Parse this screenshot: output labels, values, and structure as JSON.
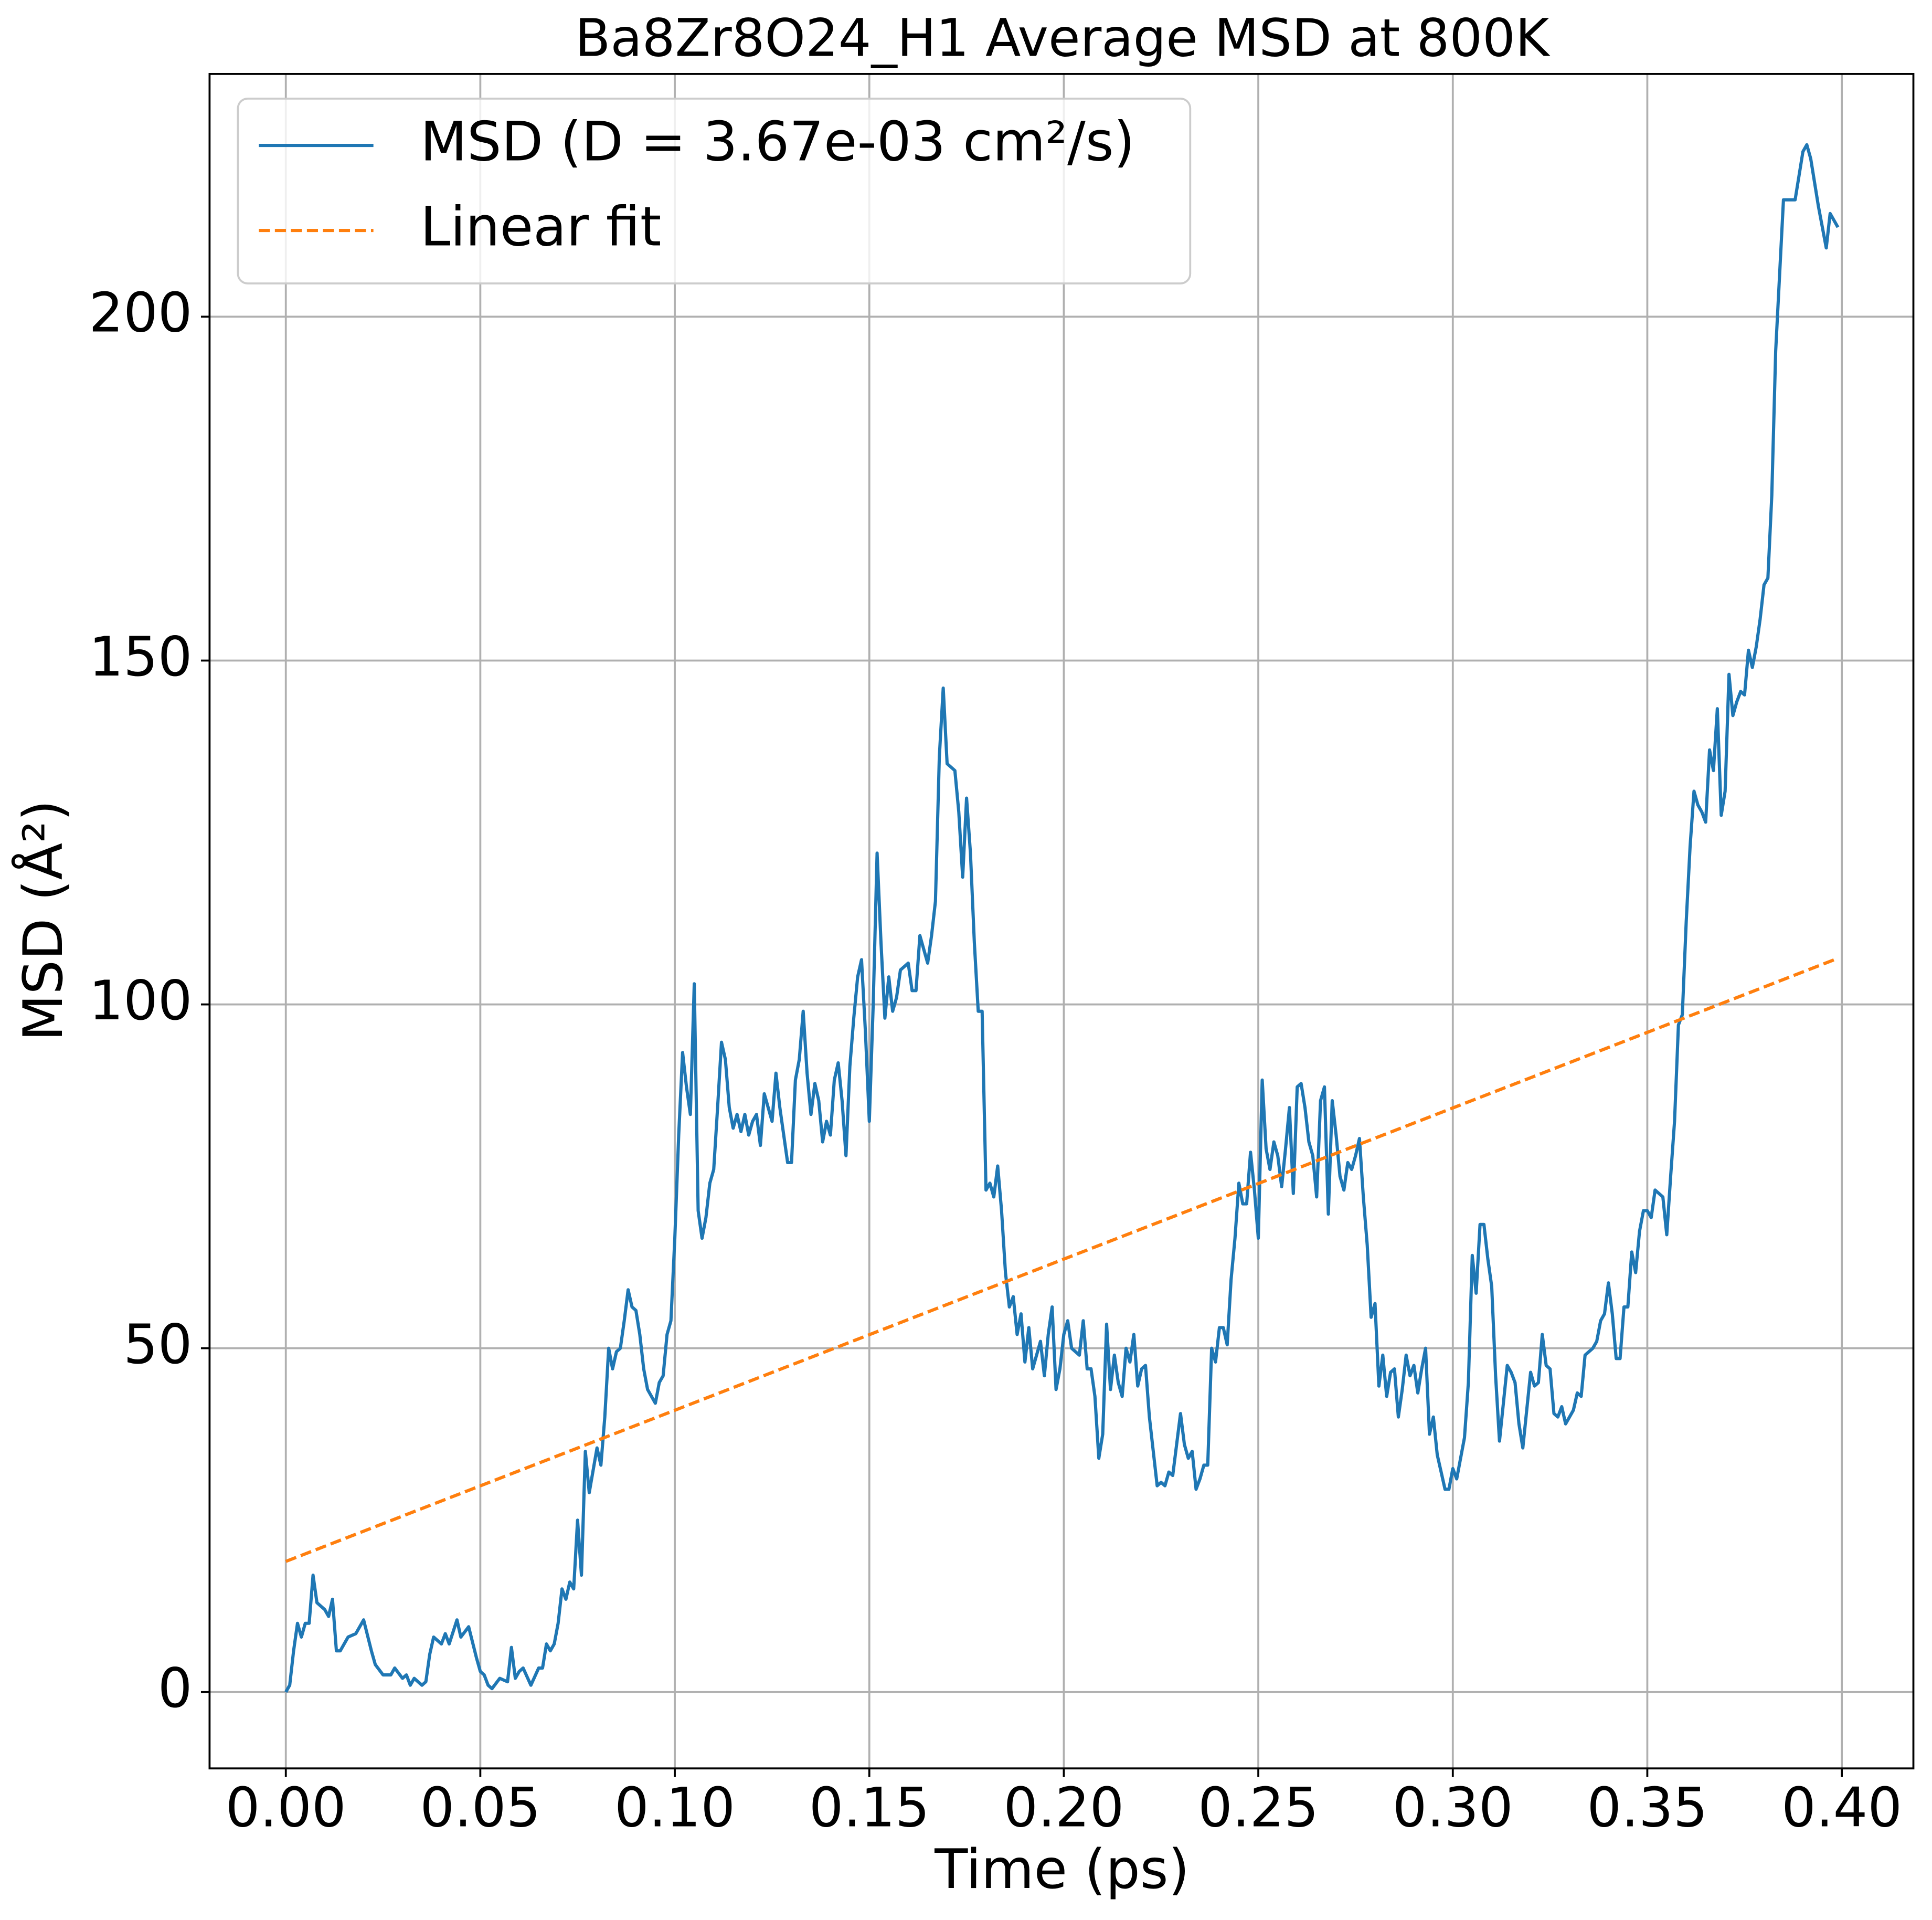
{
  "chart_data": {
    "type": "line",
    "title": "Ba8Zr8O24_H1 Average MSD at 800K",
    "xlabel": "Time (ps)",
    "ylabel": "MSD (Å²)",
    "xlim": [
      -0.0196,
      0.4184
    ],
    "ylim": [
      -11.1,
      235.3
    ],
    "xticks": [
      {
        "value": 0,
        "label": "0.00"
      },
      {
        "value": 0.05,
        "label": "0.05"
      },
      {
        "value": 0.1,
        "label": "0.10"
      },
      {
        "value": 0.15,
        "label": "0.15"
      },
      {
        "value": 0.2,
        "label": "0.20"
      },
      {
        "value": 0.25,
        "label": "0.25"
      },
      {
        "value": 0.3,
        "label": "0.30"
      },
      {
        "value": 0.35,
        "label": "0.35"
      },
      {
        "value": 0.4,
        "label": "0.40"
      }
    ],
    "yticks": [
      0,
      50,
      100,
      150,
      200
    ],
    "grid": true,
    "legend": "upper left",
    "series": [
      {
        "name": "MSD (D = 3.67e-03 cm²/s)",
        "color": "#1f77b4",
        "linestyle": "solid",
        "x": [
          0,
          0.001,
          0.002,
          0.003,
          0.004,
          0.005,
          0.006,
          0.007,
          0.008,
          0.01,
          0.011,
          0.012,
          0.013,
          0.014,
          0.016,
          0.018,
          0.02,
          0.022,
          0.023,
          0.025,
          0.027,
          0.028,
          0.03,
          0.031,
          0.032,
          0.033,
          0.035,
          0.036,
          0.037,
          0.038,
          0.04,
          0.041,
          0.042,
          0.044,
          0.045,
          0.047,
          0.049,
          0.05,
          0.051,
          0.052,
          0.053,
          0.055,
          0.057,
          0.058,
          0.059,
          0.06,
          0.061,
          0.063,
          0.065,
          0.066,
          0.067,
          0.068,
          0.069,
          0.07,
          0.071,
          0.072,
          0.073,
          0.074,
          0.075,
          0.076,
          0.077,
          0.078,
          0.08,
          0.081,
          0.082,
          0.083,
          0.084,
          0.085,
          0.086,
          0.087,
          0.088,
          0.089,
          0.09,
          0.091,
          0.092,
          0.093,
          0.095,
          0.096,
          0.097,
          0.098,
          0.099,
          0.1,
          0.101,
          0.102,
          0.103,
          0.104,
          0.105,
          0.106,
          0.107,
          0.108,
          0.109,
          0.11,
          0.111,
          0.112,
          0.113,
          0.114,
          0.115,
          0.116,
          0.117,
          0.118,
          0.119,
          0.12,
          0.121,
          0.122,
          0.123,
          0.124,
          0.125,
          0.126,
          0.127,
          0.128,
          0.129,
          0.13,
          0.131,
          0.132,
          0.133,
          0.134,
          0.135,
          0.136,
          0.137,
          0.138,
          0.139,
          0.14,
          0.141,
          0.142,
          0.143,
          0.144,
          0.145,
          0.146,
          0.147,
          0.148,
          0.149,
          0.15,
          0.151,
          0.152,
          0.153,
          0.154,
          0.155,
          0.156,
          0.157,
          0.158,
          0.16,
          0.161,
          0.162,
          0.163,
          0.164,
          0.165,
          0.166,
          0.167,
          0.168,
          0.169,
          0.17,
          0.172,
          0.173,
          0.174,
          0.175,
          0.176,
          0.177,
          0.178,
          0.179,
          0.18,
          0.181,
          0.182,
          0.183,
          0.184,
          0.185,
          0.186,
          0.187,
          0.188,
          0.189,
          0.19,
          0.191,
          0.192,
          0.193,
          0.194,
          0.195,
          0.196,
          0.197,
          0.198,
          0.199,
          0.2,
          0.201,
          0.202,
          0.204,
          0.205,
          0.206,
          0.207,
          0.208,
          0.209,
          0.21,
          0.211,
          0.212,
          0.213,
          0.214,
          0.215,
          0.216,
          0.217,
          0.218,
          0.219,
          0.22,
          0.221,
          0.222,
          0.223,
          0.224,
          0.225,
          0.226,
          0.227,
          0.228,
          0.229,
          0.23,
          0.231,
          0.232,
          0.233,
          0.234,
          0.235,
          0.236,
          0.237,
          0.238,
          0.239,
          0.24,
          0.241,
          0.242,
          0.243,
          0.244,
          0.245,
          0.246,
          0.247,
          0.248,
          0.249,
          0.25,
          0.251,
          0.252,
          0.253,
          0.254,
          0.255,
          0.256,
          0.257,
          0.258,
          0.259,
          0.26,
          0.261,
          0.262,
          0.263,
          0.264,
          0.265,
          0.266,
          0.267,
          0.268,
          0.269,
          0.27,
          0.271,
          0.272,
          0.273,
          0.274,
          0.275,
          0.276,
          0.277,
          0.278,
          0.279,
          0.28,
          0.281,
          0.282,
          0.283,
          0.284,
          0.285,
          0.286,
          0.287,
          0.288,
          0.289,
          0.29,
          0.291,
          0.292,
          0.293,
          0.294,
          0.295,
          0.296,
          0.297,
          0.298,
          0.299,
          0.3,
          0.301,
          0.302,
          0.303,
          0.304,
          0.305,
          0.306,
          0.307,
          0.308,
          0.309,
          0.31,
          0.311,
          0.312,
          0.313,
          0.314,
          0.315,
          0.316,
          0.317,
          0.318,
          0.319,
          0.32,
          0.321,
          0.322,
          0.323,
          0.324,
          0.325,
          0.326,
          0.327,
          0.328,
          0.329,
          0.33,
          0.331,
          0.332,
          0.333,
          0.334,
          0.336,
          0.337,
          0.338,
          0.339,
          0.34,
          0.341,
          0.342,
          0.343,
          0.344,
          0.345,
          0.346,
          0.347,
          0.348,
          0.349,
          0.35,
          0.351,
          0.352,
          0.353,
          0.354,
          0.355,
          0.356,
          0.357,
          0.358,
          0.359,
          0.36,
          0.361,
          0.362,
          0.363,
          0.364,
          0.365,
          0.366,
          0.367,
          0.368,
          0.369,
          0.37,
          0.371,
          0.372,
          0.373,
          0.374,
          0.375,
          0.376,
          0.377,
          0.378,
          0.379,
          0.38,
          0.381,
          0.382,
          0.383,
          0.385,
          0.388,
          0.39,
          0.391,
          0.392,
          0.394,
          0.396,
          0.397,
          0.399
        ],
        "values": [
          0,
          1,
          6,
          10,
          8,
          10,
          10,
          17,
          13,
          12,
          11,
          13.5,
          6,
          6,
          8,
          8.5,
          10.5,
          6,
          4,
          2.5,
          2.5,
          3.5,
          2,
          2.5,
          1,
          2,
          1,
          1.5,
          5.5,
          8,
          7,
          8.5,
          7,
          10.5,
          8,
          9.5,
          5,
          3,
          2.5,
          1,
          0.5,
          2,
          1.5,
          6.5,
          2,
          3,
          3.5,
          1,
          3.5,
          3.5,
          7,
          6,
          7,
          10,
          15,
          13.5,
          16,
          15,
          25,
          17,
          35,
          29,
          35.5,
          33,
          40,
          50,
          47,
          49.5,
          50,
          54,
          58.5,
          56,
          55.5,
          52,
          47,
          44,
          42,
          45,
          46,
          52,
          54,
          66,
          81,
          93,
          88,
          84,
          103,
          70,
          66,
          69,
          74,
          76,
          85,
          94.5,
          92,
          85,
          82,
          84,
          81.5,
          84,
          81,
          83,
          84,
          79.5,
          87,
          85,
          83,
          90,
          85,
          81,
          77,
          77,
          89,
          92,
          99,
          90,
          84,
          88.5,
          86,
          80,
          83,
          81,
          89,
          91.5,
          86,
          78,
          91,
          98,
          104,
          106.5,
          96,
          83,
          100,
          122,
          109,
          98,
          104,
          99,
          101,
          105,
          106,
          102,
          102,
          110,
          108,
          106,
          110,
          115,
          136,
          146,
          135,
          134,
          128,
          118.5,
          130,
          122,
          109,
          99,
          99,
          73,
          74,
          72,
          76.5,
          70,
          61,
          56,
          57.5,
          52,
          55,
          48,
          53,
          47,
          49,
          51,
          46,
          52,
          56,
          44,
          47,
          52,
          54,
          50,
          49,
          54,
          47,
          47,
          43,
          34,
          37.5,
          53.5,
          44,
          49,
          45,
          43,
          50,
          48,
          52,
          44.5,
          47,
          47.5,
          40,
          35,
          30,
          30.5,
          30,
          32,
          31.5,
          36,
          40.5,
          36,
          34,
          35,
          29.5,
          31,
          33,
          33,
          50,
          48,
          53,
          53,
          50.5,
          60,
          66,
          74,
          71,
          71,
          78.5,
          73,
          66,
          89,
          79,
          76,
          80,
          78,
          73.5,
          79,
          85,
          72.5,
          88,
          88.5,
          85,
          80,
          78,
          72,
          86,
          88,
          69.5,
          86,
          81,
          75,
          73,
          77,
          76,
          78,
          80.5,
          72,
          65,
          54.5,
          56.5,
          44.5,
          49,
          43,
          46.5,
          47,
          40,
          44,
          49,
          46,
          47.5,
          43.5,
          47,
          50,
          37.5,
          40,
          34.5,
          32,
          29.5,
          29.5,
          32.5,
          31,
          34,
          37,
          45,
          63.5,
          58,
          68,
          68,
          63,
          59,
          46,
          36.5,
          42,
          47.5,
          46.5,
          45,
          39,
          35.5,
          41,
          46.5,
          44.5,
          45,
          52,
          47.5,
          47,
          40.5,
          40,
          41.5,
          39,
          40,
          41,
          43.5,
          43,
          49,
          50,
          51,
          54,
          55,
          59.5,
          55,
          48.5,
          48.5,
          56,
          56,
          64,
          61,
          67,
          70,
          70,
          69,
          73,
          72.5,
          72,
          66.5,
          75,
          83,
          97,
          98.5,
          112,
          123,
          131,
          129,
          128,
          126.5,
          137,
          134,
          143,
          127.5,
          131,
          148,
          142,
          144,
          145.5,
          145,
          151.5,
          149,
          152,
          156,
          161,
          162,
          174,
          195,
          217,
          217,
          224,
          225,
          223,
          216,
          210,
          215,
          213
        ]
      },
      {
        "name": "Linear fit",
        "color": "#ff7f0e",
        "linestyle": "dashed",
        "x": [
          0,
          0.399
        ],
        "values": [
          19,
          106.7
        ]
      }
    ]
  }
}
